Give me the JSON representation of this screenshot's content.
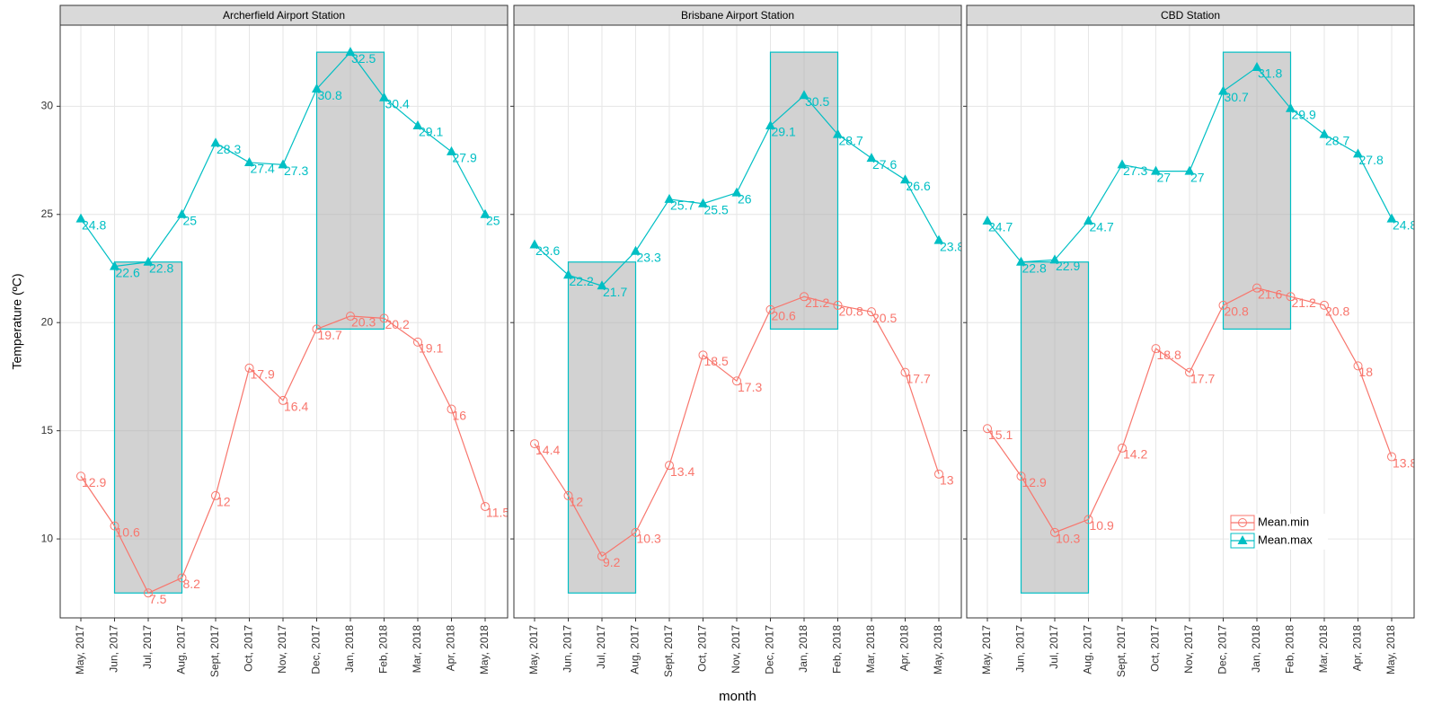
{
  "chart_data": [
    {
      "type": "line",
      "title": "Archerfield Airport Station",
      "y_label": "Temperature (ºC)",
      "categories": [
        "May, 2017",
        "Jun, 2017",
        "Jul, 2017",
        "Aug, 2017",
        "Sept, 2017",
        "Oct, 2017",
        "Nov, 2017",
        "Dec, 2017",
        "Jan, 2018",
        "Feb, 2018",
        "Mar, 2018",
        "Apr, 2018",
        "May, 2018"
      ],
      "series": [
        {
          "name": "Mean.min",
          "color": "#F8766D",
          "marker": "circle",
          "values": [
            12.9,
            10.6,
            7.5,
            8.2,
            12,
            17.9,
            16.4,
            19.7,
            20.3,
            20.2,
            19.1,
            16,
            11.5
          ]
        },
        {
          "name": "Mean.max",
          "color": "#00BFC4",
          "marker": "triangle",
          "values": [
            24.8,
            22.6,
            22.8,
            25,
            28.3,
            27.4,
            27.3,
            30.8,
            32.5,
            30.4,
            29.1,
            27.9,
            25
          ]
        }
      ],
      "shaded_regions": [
        {
          "from": "Jun, 2017",
          "to": "Aug, 2017",
          "ymin": 7.5,
          "ymax": 22.8
        },
        {
          "from": "Dec, 2017",
          "to": "Feb, 2018",
          "ymin": 19.7,
          "ymax": 32.5
        }
      ],
      "ylim": [
        6.35,
        33.75
      ],
      "yticks": [
        10,
        15,
        20,
        25,
        30
      ],
      "grid": true
    },
    {
      "type": "line",
      "title": "Brisbane Airport Station",
      "x_label": "month",
      "categories": [
        "May, 2017",
        "Jun, 2017",
        "Jul, 2017",
        "Aug, 2017",
        "Sept, 2017",
        "Oct, 2017",
        "Nov, 2017",
        "Dec, 2017",
        "Jan, 2018",
        "Feb, 2018",
        "Mar, 2018",
        "Apr, 2018",
        "May, 2018"
      ],
      "series": [
        {
          "name": "Mean.min",
          "color": "#F8766D",
          "marker": "circle",
          "values": [
            14.4,
            12,
            9.2,
            10.3,
            13.4,
            18.5,
            17.3,
            20.6,
            21.2,
            20.8,
            20.5,
            17.7,
            13
          ]
        },
        {
          "name": "Mean.max",
          "color": "#00BFC4",
          "marker": "triangle",
          "values": [
            23.6,
            22.2,
            21.7,
            23.3,
            25.7,
            25.5,
            26,
            29.1,
            30.5,
            28.7,
            27.6,
            26.6,
            23.8
          ]
        }
      ],
      "shaded_regions": [
        {
          "from": "Jun, 2017",
          "to": "Aug, 2017",
          "ymin": 7.5,
          "ymax": 22.8
        },
        {
          "from": "Dec, 2017",
          "to": "Feb, 2018",
          "ymin": 19.7,
          "ymax": 32.5
        }
      ],
      "ylim": [
        6.35,
        33.75
      ],
      "yticks": [
        10,
        15,
        20,
        25,
        30
      ],
      "grid": true
    },
    {
      "type": "line",
      "title": "CBD Station",
      "legend": "bottom-right",
      "categories": [
        "May, 2017",
        "Jun, 2017",
        "Jul, 2017",
        "Aug, 2017",
        "Sept, 2017",
        "Oct, 2017",
        "Nov, 2017",
        "Dec, 2017",
        "Jan, 2018",
        "Feb, 2018",
        "Mar, 2018",
        "Apr, 2018",
        "May, 2018"
      ],
      "series": [
        {
          "name": "Mean.min",
          "color": "#F8766D",
          "marker": "circle",
          "values": [
            15.1,
            12.9,
            10.3,
            10.9,
            14.2,
            18.8,
            17.7,
            20.8,
            21.6,
            21.2,
            20.8,
            18,
            13.8
          ]
        },
        {
          "name": "Mean.max",
          "color": "#00BFC4",
          "marker": "triangle",
          "values": [
            24.7,
            22.8,
            22.9,
            24.7,
            27.3,
            27,
            27,
            30.7,
            31.8,
            29.9,
            28.7,
            27.8,
            24.8
          ]
        }
      ],
      "shaded_regions": [
        {
          "from": "Jun, 2017",
          "to": "Aug, 2017",
          "ymin": 7.5,
          "ymax": 22.8
        },
        {
          "from": "Dec, 2017",
          "to": "Feb, 2018",
          "ymin": 19.7,
          "ymax": 32.5
        }
      ],
      "ylim": [
        6.35,
        33.75
      ],
      "yticks": [
        10,
        15,
        20,
        25,
        30
      ],
      "grid": true
    }
  ]
}
